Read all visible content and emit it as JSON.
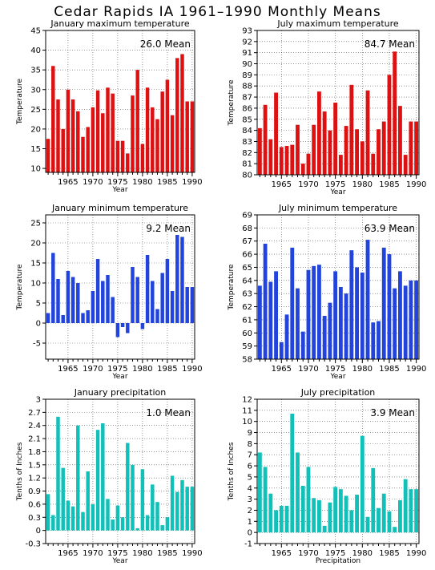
{
  "title": "Cedar Rapids IA  1961–1990 Monthly Means",
  "colors": {
    "red": "#dd1111",
    "blue": "#2244dd",
    "teal": "#11c0b8"
  },
  "chart_data": [
    {
      "type": "bar",
      "title": "January maximum temperature",
      "annotation": "26.0  Mean",
      "xlabel": "Year",
      "ylabel": "Temperature",
      "ylim": [
        9,
        45
      ],
      "yticks": [
        "10",
        "15",
        "20",
        "25",
        "30",
        "35",
        "40",
        "45"
      ],
      "ytick_values": [
        10,
        15,
        20,
        25,
        30,
        35,
        40,
        45
      ],
      "xticks": [
        "1965",
        "1970",
        "1975",
        "1980",
        "1985",
        "1990"
      ],
      "xlim": [
        1960.5,
        1990.5
      ],
      "color": "#dd1111",
      "baseline": 9,
      "x": [
        1961,
        1962,
        1963,
        1964,
        1965,
        1966,
        1967,
        1968,
        1969,
        1970,
        1971,
        1972,
        1973,
        1974,
        1975,
        1976,
        1977,
        1978,
        1979,
        1980,
        1981,
        1982,
        1983,
        1984,
        1985,
        1986,
        1987,
        1988,
        1989,
        1990
      ],
      "values": [
        17.5,
        36.0,
        27.5,
        20.0,
        30.0,
        27.5,
        24.5,
        18.0,
        20.5,
        25.5,
        29.8,
        24.0,
        30.5,
        29.0,
        17.0,
        17.0,
        13.8,
        28.5,
        35.0,
        16.2,
        30.5,
        25.5,
        22.5,
        29.5,
        32.5,
        23.5,
        38.0,
        39.0,
        27.0,
        27.0
      ]
    },
    {
      "type": "bar",
      "title": "July maximum temperature",
      "annotation": "84.7  Mean",
      "xlabel": "Year",
      "ylabel": "Temperature",
      "ylim": [
        80,
        93
      ],
      "yticks": [
        "80",
        "81",
        "82",
        "83",
        "84",
        "85",
        "86",
        "87",
        "88",
        "89",
        "90",
        "91",
        "92",
        "93"
      ],
      "ytick_values": [
        80,
        81,
        82,
        83,
        84,
        85,
        86,
        87,
        88,
        89,
        90,
        91,
        92,
        93
      ],
      "xticks": [
        "1965",
        "1970",
        "1975",
        "1980",
        "1985",
        "1990"
      ],
      "xlim": [
        1960.5,
        1990.5
      ],
      "color": "#dd1111",
      "baseline": 80,
      "x": [
        1961,
        1962,
        1963,
        1964,
        1965,
        1966,
        1967,
        1968,
        1969,
        1970,
        1971,
        1972,
        1973,
        1974,
        1975,
        1976,
        1977,
        1978,
        1979,
        1980,
        1981,
        1982,
        1983,
        1984,
        1985,
        1986,
        1987,
        1988,
        1989,
        1990
      ],
      "values": [
        84.2,
        86.3,
        83.2,
        87.4,
        82.5,
        82.6,
        82.7,
        84.5,
        81.0,
        81.9,
        84.5,
        87.5,
        85.7,
        84.0,
        86.5,
        81.8,
        84.4,
        88.1,
        84.1,
        83.0,
        87.6,
        81.9,
        84.1,
        84.8,
        89.0,
        91.1,
        86.2,
        81.8,
        84.8,
        84.8
      ]
    },
    {
      "type": "bar",
      "title": "January minimum temperature",
      "annotation": "9.2  Mean",
      "xlabel": "Year",
      "ylabel": "Temperature",
      "ylim": [
        -9,
        27
      ],
      "yticks": [
        "-5",
        "0",
        "5",
        "10",
        "15",
        "20",
        "25"
      ],
      "ytick_values": [
        -5,
        0,
        5,
        10,
        15,
        20,
        25
      ],
      "xticks": [
        "1965",
        "1970",
        "1975",
        "1980",
        "1985",
        "1990"
      ],
      "xlim": [
        1960.5,
        1990.5
      ],
      "color": "#2244dd",
      "baseline": 0,
      "x": [
        1961,
        1962,
        1963,
        1964,
        1965,
        1966,
        1967,
        1968,
        1969,
        1970,
        1971,
        1972,
        1973,
        1974,
        1975,
        1976,
        1977,
        1978,
        1979,
        1980,
        1981,
        1982,
        1983,
        1984,
        1985,
        1986,
        1987,
        1988,
        1989,
        1990
      ],
      "values": [
        2.5,
        17.5,
        11.0,
        2.0,
        13.0,
        11.5,
        10.0,
        2.5,
        3.2,
        8.0,
        16.0,
        10.5,
        12.0,
        6.5,
        -3.5,
        -1.0,
        -2.5,
        14.0,
        11.5,
        -1.5,
        17.0,
        10.5,
        3.5,
        12.5,
        16.0,
        8.0,
        22.0,
        21.5,
        9.0,
        9.0
      ]
    },
    {
      "type": "bar",
      "title": "July minimum temperature",
      "annotation": "63.9  Mean",
      "xlabel": "Year",
      "ylabel": "Temperature",
      "ylim": [
        58,
        69
      ],
      "yticks": [
        "58",
        "59",
        "60",
        "61",
        "62",
        "63",
        "64",
        "65",
        "66",
        "67",
        "68",
        "69"
      ],
      "ytick_values": [
        58,
        59,
        60,
        61,
        62,
        63,
        64,
        65,
        66,
        67,
        68,
        69
      ],
      "xticks": [
        "1965",
        "1970",
        "1975",
        "1980",
        "1985",
        "1990"
      ],
      "xlim": [
        1960.5,
        1990.5
      ],
      "color": "#2244dd",
      "baseline": 58,
      "x": [
        1961,
        1962,
        1963,
        1964,
        1965,
        1966,
        1967,
        1968,
        1969,
        1970,
        1971,
        1972,
        1973,
        1974,
        1975,
        1976,
        1977,
        1978,
        1979,
        1980,
        1981,
        1982,
        1983,
        1984,
        1985,
        1986,
        1987,
        1988,
        1989,
        1990
      ],
      "values": [
        63.6,
        66.8,
        63.9,
        64.7,
        59.3,
        61.4,
        66.5,
        63.4,
        60.1,
        64.8,
        65.1,
        65.2,
        61.3,
        62.3,
        64.7,
        63.5,
        63.0,
        66.3,
        65.0,
        64.6,
        67.1,
        60.8,
        60.9,
        66.5,
        66.0,
        63.4,
        64.7,
        63.6,
        64.0,
        64.0
      ]
    },
    {
      "type": "bar",
      "title": "January precipitation",
      "annotation": "1.0  Mean",
      "xlabel": "Year",
      "ylabel": "Tenths of Inches",
      "ylim": [
        -0.3,
        3.0
      ],
      "yticks": [
        "-0.3",
        "0",
        "0.3",
        "0.6",
        "0.9",
        "1.2",
        "1.5",
        "1.8",
        "2.1",
        "2.4",
        "2.7",
        "3"
      ],
      "ytick_values": [
        -0.3,
        0,
        0.3,
        0.6,
        0.9,
        1.2,
        1.5,
        1.8,
        2.1,
        2.4,
        2.7,
        3.0
      ],
      "xticks": [
        "1965",
        "1970",
        "1975",
        "1980",
        "1985",
        "1990"
      ],
      "xlim": [
        1960.5,
        1990.5
      ],
      "color": "#11c0b8",
      "baseline": 0,
      "x": [
        1961,
        1962,
        1963,
        1964,
        1965,
        1966,
        1967,
        1968,
        1969,
        1970,
        1971,
        1972,
        1973,
        1974,
        1975,
        1976,
        1977,
        1978,
        1979,
        1980,
        1981,
        1982,
        1983,
        1984,
        1985,
        1986,
        1987,
        1988,
        1989,
        1990
      ],
      "values": [
        0.83,
        0.35,
        2.6,
        1.43,
        0.68,
        0.55,
        2.4,
        0.42,
        1.35,
        0.6,
        2.3,
        2.45,
        0.72,
        0.25,
        0.57,
        0.3,
        2.0,
        1.5,
        0.05,
        1.4,
        0.35,
        1.05,
        0.65,
        0.12,
        0.3,
        1.25,
        0.88,
        1.15,
        1.0,
        1.0
      ]
    },
    {
      "type": "bar",
      "title": "July precipitation",
      "annotation": "3.9  Mean",
      "xlabel": "Precipitation",
      "ylabel": "Tenths of Inches",
      "ylim": [
        -1,
        12
      ],
      "yticks": [
        "-1",
        "0",
        "1",
        "2",
        "3",
        "4",
        "5",
        "6",
        "7",
        "8",
        "9",
        "10",
        "11",
        "12"
      ],
      "ytick_values": [
        -1,
        0,
        1,
        2,
        3,
        4,
        5,
        6,
        7,
        8,
        9,
        10,
        11,
        12
      ],
      "xticks": [
        "1965",
        "1970",
        "1975",
        "1980",
        "1985",
        "1990"
      ],
      "xlim": [
        1960.5,
        1990.5
      ],
      "color": "#11c0b8",
      "baseline": 0,
      "x": [
        1961,
        1962,
        1963,
        1964,
        1965,
        1966,
        1967,
        1968,
        1969,
        1970,
        1971,
        1972,
        1973,
        1974,
        1975,
        1976,
        1977,
        1978,
        1979,
        1980,
        1981,
        1982,
        1983,
        1984,
        1985,
        1986,
        1987,
        1988,
        1989,
        1990
      ],
      "values": [
        7.2,
        5.9,
        3.5,
        2.0,
        2.4,
        2.4,
        10.7,
        7.2,
        4.2,
        5.9,
        3.1,
        2.9,
        0.6,
        2.7,
        4.1,
        3.9,
        3.3,
        2.0,
        3.4,
        8.7,
        1.4,
        5.8,
        2.2,
        3.5,
        1.9,
        0.5,
        2.9,
        4.8,
        3.9,
        3.9
      ]
    }
  ]
}
